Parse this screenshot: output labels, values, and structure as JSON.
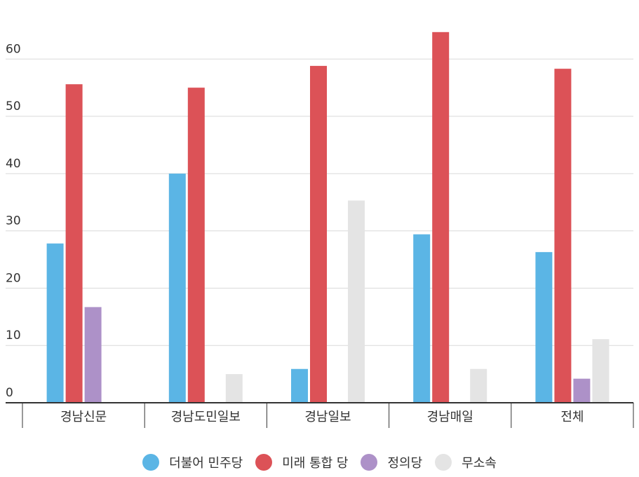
{
  "chart_data": {
    "type": "bar",
    "categories": [
      "경남신문",
      "경남도민일보",
      "경남일보",
      "경남매일",
      "전체"
    ],
    "series": [
      {
        "name": "더불어 민주당",
        "color": "#5bb5e5",
        "values": [
          27.8,
          40.0,
          5.9,
          29.4,
          26.3
        ]
      },
      {
        "name": "미래 통합 당",
        "color": "#dc5257",
        "values": [
          55.6,
          55.0,
          58.8,
          64.7,
          58.3
        ]
      },
      {
        "name": "정의당",
        "color": "#ad91c8",
        "values": [
          16.7,
          0,
          0,
          0,
          4.2
        ]
      },
      {
        "name": "무소속",
        "color": "#e4e4e4",
        "values": [
          0,
          5.0,
          35.3,
          5.9,
          11.1
        ]
      }
    ],
    "yticks": [
      0,
      10,
      20,
      30,
      40,
      50,
      60
    ],
    "ylim": [
      0,
      67
    ],
    "grid": true,
    "legend_position": "bottom"
  }
}
